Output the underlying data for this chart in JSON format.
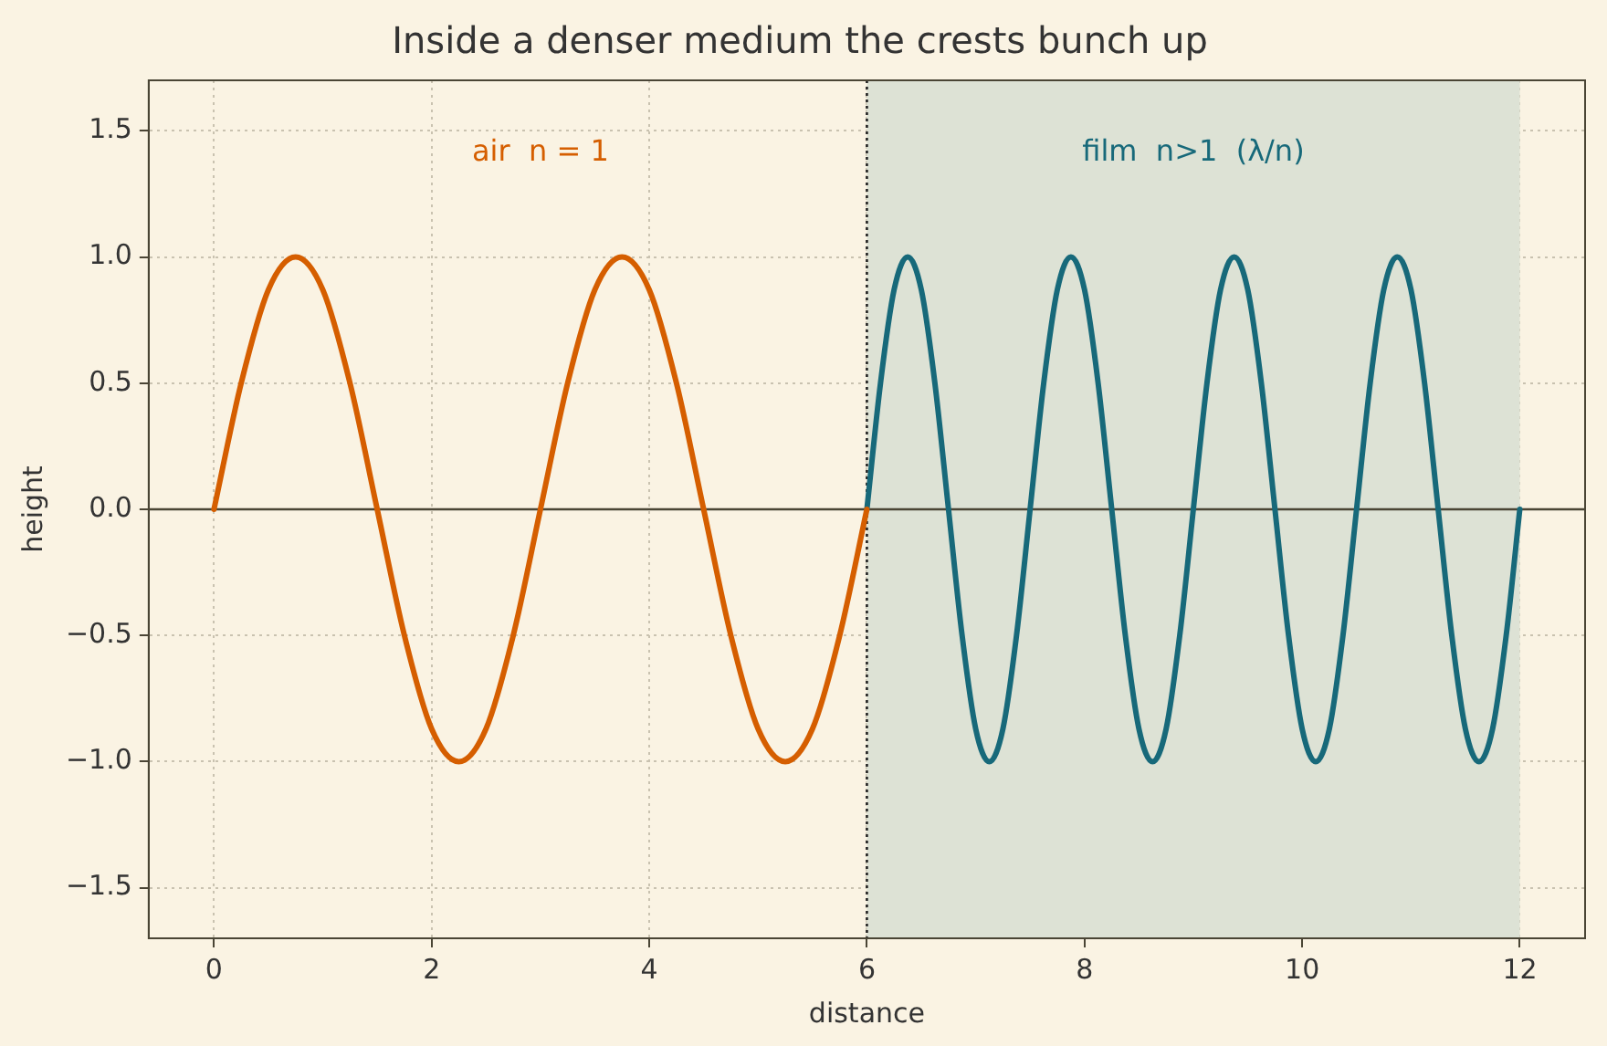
{
  "chart_data": {
    "type": "line",
    "title": "Inside a denser medium the crests bunch up",
    "xlabel": "distance",
    "ylabel": "height",
    "xlim": [
      -0.6,
      12.6
    ],
    "ylim": [
      -1.7,
      1.7
    ],
    "xticks": [
      0,
      2,
      4,
      6,
      8,
      10,
      12
    ],
    "yticks": [
      {
        "value": -1.5,
        "label": "−1.5"
      },
      {
        "value": -1,
        "label": "−1.0"
      },
      {
        "value": -0.5,
        "label": "−0.5"
      },
      {
        "value": 0,
        "label": "0.0"
      },
      {
        "value": 0.5,
        "label": "0.5"
      },
      {
        "value": 1,
        "label": "1.0"
      },
      {
        "value": 1.5,
        "label": "1.5"
      }
    ],
    "grid": true,
    "legend": false,
    "marker": "none",
    "line_style": "solid",
    "series": [
      {
        "name": "air  n = 1",
        "color": "#d55e00",
        "x": [
          0,
          0.25,
          0.5,
          0.75,
          1,
          1.25,
          1.5,
          1.75,
          2,
          2.25,
          2.5,
          2.75,
          3,
          3.25,
          3.5,
          3.75,
          4,
          4.25,
          4.5,
          4.75,
          5,
          5.25,
          5.5,
          5.75,
          6
        ],
        "values": [
          0,
          0.5,
          0.87,
          1,
          0.87,
          0.5,
          0,
          -0.5,
          -0.87,
          -1,
          -0.87,
          -0.5,
          0,
          0.5,
          0.87,
          1,
          0.87,
          0.5,
          0,
          -0.5,
          -0.87,
          -1,
          -0.87,
          -0.5,
          0
        ]
      },
      {
        "name": "film  n>1  (λ/n)",
        "color": "#17697a",
        "x": [
          6,
          6.125,
          6.25,
          6.375,
          6.5,
          6.625,
          6.75,
          6.875,
          7,
          7.125,
          7.25,
          7.375,
          7.5,
          7.625,
          7.75,
          7.875,
          8,
          8.125,
          8.25,
          8.375,
          8.5,
          8.625,
          8.75,
          8.875,
          9,
          9.125,
          9.25,
          9.375,
          9.5,
          9.625,
          9.75,
          9.875,
          10,
          10.125,
          10.25,
          10.375,
          10.5,
          10.625,
          10.75,
          10.875,
          11,
          11.125,
          11.25,
          11.375,
          11.5,
          11.625,
          11.75,
          11.875,
          12
        ],
        "values": [
          0,
          0.5,
          0.87,
          1,
          0.87,
          0.5,
          0,
          -0.5,
          -0.87,
          -1,
          -0.87,
          -0.5,
          0,
          0.5,
          0.87,
          1,
          0.87,
          0.5,
          0,
          -0.5,
          -0.87,
          -1,
          -0.87,
          -0.5,
          0,
          0.5,
          0.87,
          1,
          0.87,
          0.5,
          0,
          -0.5,
          -0.87,
          -1,
          -0.87,
          -0.5,
          0,
          0.5,
          0.87,
          1,
          0.87,
          0.5,
          0,
          -0.5,
          -0.87,
          -1,
          -0.87,
          -0.5,
          0
        ]
      }
    ],
    "ref_lines": [
      {
        "axis": "y",
        "value": 0,
        "color": "#4a4535",
        "line_style": "solid"
      },
      {
        "axis": "x",
        "value": 6,
        "color": "#222222",
        "line_style": "dotted"
      }
    ],
    "bands": [
      {
        "axis": "x",
        "from": 6,
        "to": 12,
        "color": "#dde2d5"
      }
    ]
  }
}
